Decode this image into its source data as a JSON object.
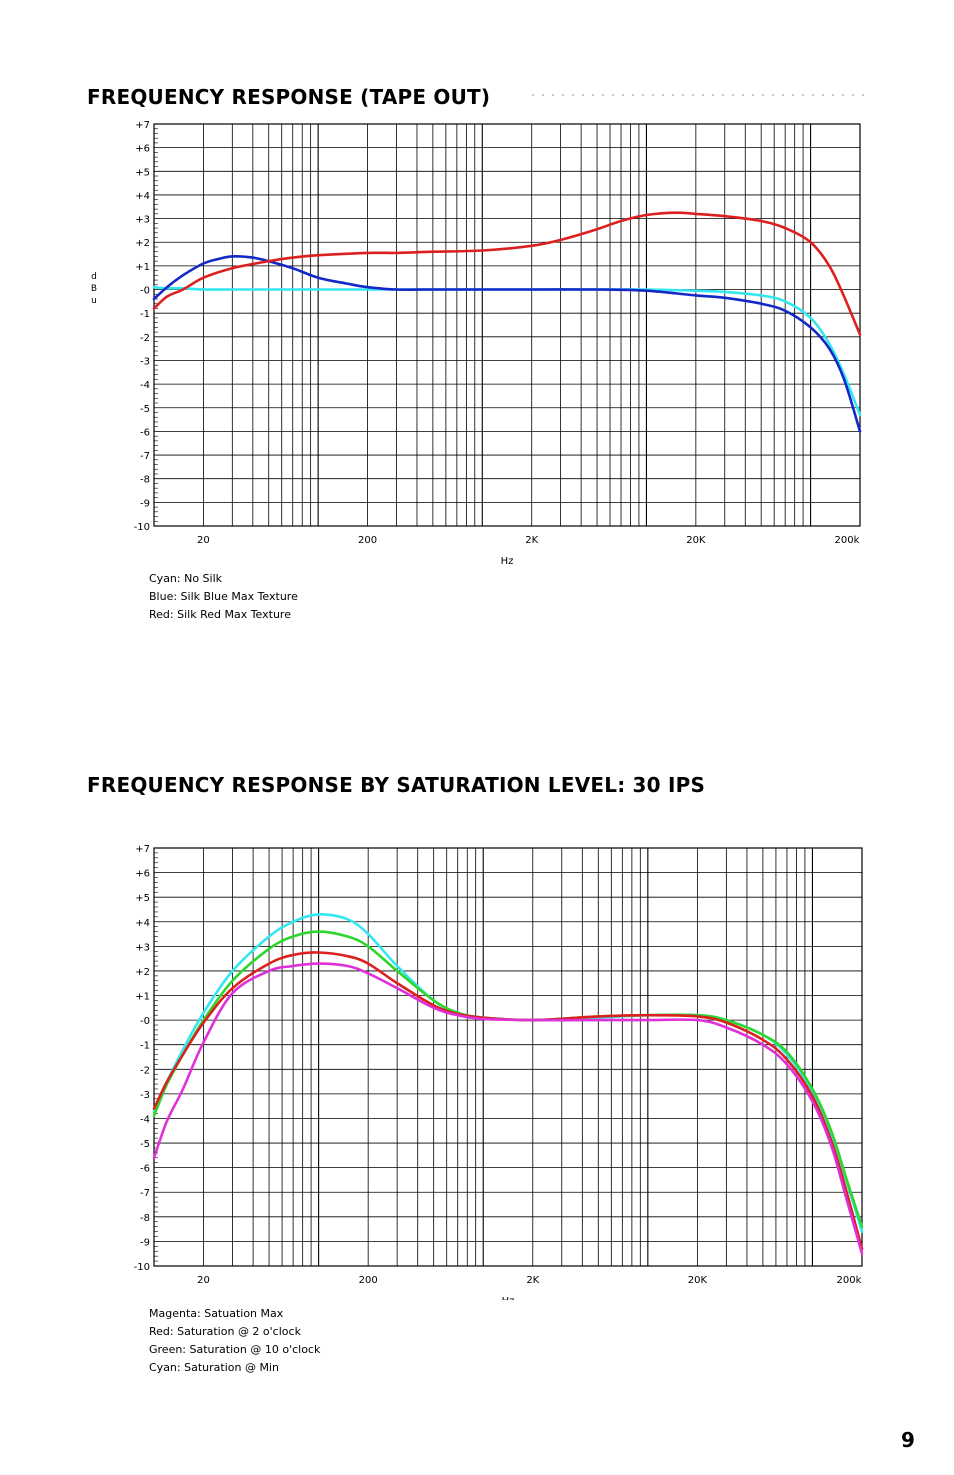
{
  "page": {
    "section1_title": "FREQUENCY RESPONSE (TAPE OUT)",
    "section2_title": "FREQUENCY RESPONSE BY SATURATION LEVEL: 30 IPS",
    "page_number": "9"
  },
  "legend1": [
    "Cyan: No Silk",
    "Blue: Silk Blue Max Texture",
    "Red:  Silk Red Max Texture"
  ],
  "legend2": [
    "Magenta: Satuation Max",
    "Red: Saturation @ 2 o'clock",
    "Green: Saturation @ 10 o'clock",
    "Cyan: Saturation @ Min"
  ],
  "colors": {
    "cyan": "#33e6f0",
    "blue": "#1428c8",
    "red": "#dc2020",
    "green": "#2ed62e",
    "magenta": "#e030d8"
  },
  "chart_data": [
    {
      "type": "line",
      "title": "FREQUENCY RESPONSE (TAPE OUT)",
      "xlabel": "Hz",
      "ylabel": "dBu",
      "x_scale": "log",
      "xlim": [
        10,
        200000
      ],
      "ylim": [
        -10,
        7
      ],
      "grid": true,
      "x_tick_labels": [
        {
          "x": 20,
          "label": "20"
        },
        {
          "x": 200,
          "label": "200"
        },
        {
          "x": 2000,
          "label": "2K"
        },
        {
          "x": 20000,
          "label": "20K"
        },
        {
          "x": 200000,
          "label": "200k"
        }
      ],
      "y_tick_labels": [
        "+7",
        "+6",
        "+5",
        "+4",
        "+3",
        "+2",
        "+1",
        "-0",
        "-1",
        "-2",
        "-3",
        "-4",
        "-5",
        "-6",
        "-7",
        "-8",
        "-9",
        "-10"
      ],
      "series": [
        {
          "color_key": "cyan",
          "x": [
            10,
            12,
            15,
            20,
            30,
            50,
            100,
            200,
            500,
            1000,
            2000,
            5000,
            10000,
            20000,
            30000,
            50000,
            70000,
            100000,
            130000,
            160000,
            200000
          ],
          "y": [
            0.1,
            0.05,
            0.05,
            0.0,
            0.0,
            0.0,
            0.0,
            0.0,
            0.0,
            0.0,
            0.0,
            0.0,
            0.0,
            -0.05,
            -0.1,
            -0.25,
            -0.5,
            -1.2,
            -2.3,
            -3.6,
            -5.3
          ]
        },
        {
          "color_key": "blue",
          "x": [
            10,
            12,
            15,
            20,
            25,
            30,
            40,
            50,
            70,
            100,
            150,
            200,
            300,
            500,
            1000,
            2000,
            5000,
            10000,
            20000,
            30000,
            50000,
            70000,
            100000,
            130000,
            160000,
            200000
          ],
          "y": [
            -0.4,
            0.1,
            0.6,
            1.1,
            1.3,
            1.4,
            1.35,
            1.2,
            0.9,
            0.5,
            0.25,
            0.1,
            0.0,
            0.0,
            0.0,
            0.0,
            0.0,
            -0.05,
            -0.25,
            -0.35,
            -0.6,
            -0.9,
            -1.6,
            -2.5,
            -3.8,
            -6.0
          ]
        },
        {
          "color_key": "red",
          "x": [
            10,
            12,
            15,
            20,
            30,
            50,
            70,
            100,
            200,
            300,
            500,
            1000,
            2000,
            3000,
            5000,
            7000,
            10000,
            15000,
            20000,
            30000,
            50000,
            70000,
            100000,
            130000,
            160000,
            200000
          ],
          "y": [
            -0.8,
            -0.3,
            0.0,
            0.5,
            0.9,
            1.2,
            1.35,
            1.45,
            1.55,
            1.55,
            1.6,
            1.65,
            1.85,
            2.1,
            2.55,
            2.9,
            3.15,
            3.25,
            3.2,
            3.1,
            2.9,
            2.6,
            2.0,
            1.0,
            -0.3,
            -1.9
          ]
        }
      ]
    },
    {
      "type": "line",
      "title": "FREQUENCY RESPONSE BY SATURATION LEVEL: 30 IPS",
      "xlabel": "Hz",
      "ylabel": "",
      "x_scale": "log",
      "xlim": [
        10,
        200000
      ],
      "ylim": [
        -10,
        7
      ],
      "grid": true,
      "x_tick_labels": [
        {
          "x": 20,
          "label": "20"
        },
        {
          "x": 200,
          "label": "200"
        },
        {
          "x": 2000,
          "label": "2K"
        },
        {
          "x": 20000,
          "label": "20K"
        },
        {
          "x": 200000,
          "label": "200k"
        }
      ],
      "y_tick_labels": [
        "+7",
        "+6",
        "+5",
        "+4",
        "+3",
        "+2",
        "+1",
        "-0",
        "-1",
        "-2",
        "-3",
        "-4",
        "-5",
        "-6",
        "-7",
        "-8",
        "-9",
        "-10"
      ],
      "series": [
        {
          "color_key": "cyan",
          "x": [
            10,
            12,
            15,
            20,
            30,
            50,
            70,
            100,
            150,
            200,
            300,
            500,
            700,
            1000,
            2000,
            5000,
            10000,
            20000,
            30000,
            50000,
            70000,
            100000,
            130000,
            160000,
            200000
          ],
          "y": [
            -3.7,
            -2.5,
            -1.2,
            0.3,
            2.0,
            3.4,
            4.0,
            4.3,
            4.1,
            3.5,
            2.2,
            0.8,
            0.3,
            0.1,
            0.0,
            0.1,
            0.2,
            0.2,
            0.0,
            -0.6,
            -1.4,
            -2.9,
            -4.6,
            -6.5,
            -8.6
          ]
        },
        {
          "color_key": "green",
          "x": [
            10,
            12,
            15,
            20,
            30,
            50,
            70,
            100,
            150,
            200,
            300,
            500,
            700,
            1000,
            2000,
            5000,
            10000,
            20000,
            30000,
            50000,
            70000,
            100000,
            130000,
            160000,
            200000
          ],
          "y": [
            -3.9,
            -2.6,
            -1.4,
            0.0,
            1.6,
            2.9,
            3.4,
            3.6,
            3.4,
            3.0,
            2.0,
            0.8,
            0.3,
            0.1,
            0.0,
            0.15,
            0.2,
            0.2,
            0.0,
            -0.6,
            -1.3,
            -2.8,
            -4.5,
            -6.4,
            -8.4
          ]
        },
        {
          "color_key": "red",
          "x": [
            10,
            12,
            15,
            20,
            30,
            50,
            70,
            100,
            150,
            200,
            300,
            500,
            700,
            1000,
            2000,
            5000,
            10000,
            20000,
            30000,
            50000,
            70000,
            100000,
            130000,
            160000,
            200000
          ],
          "y": [
            -3.6,
            -2.5,
            -1.4,
            -0.1,
            1.3,
            2.3,
            2.65,
            2.75,
            2.6,
            2.3,
            1.5,
            0.6,
            0.25,
            0.1,
            0.0,
            0.15,
            0.2,
            0.15,
            -0.1,
            -0.8,
            -1.6,
            -3.1,
            -4.9,
            -6.9,
            -9.3
          ]
        },
        {
          "color_key": "magenta",
          "x": [
            10,
            12,
            15,
            20,
            30,
            50,
            70,
            100,
            150,
            200,
            300,
            500,
            700,
            1000,
            2000,
            5000,
            10000,
            20000,
            30000,
            50000,
            70000,
            100000,
            130000,
            160000,
            200000
          ],
          "y": [
            -5.6,
            -4.1,
            -2.8,
            -0.9,
            1.1,
            2.0,
            2.2,
            2.3,
            2.2,
            1.9,
            1.3,
            0.5,
            0.2,
            0.05,
            0.0,
            0.0,
            0.0,
            0.0,
            -0.3,
            -1.0,
            -1.8,
            -3.3,
            -5.1,
            -7.2,
            -9.5
          ]
        }
      ]
    }
  ]
}
